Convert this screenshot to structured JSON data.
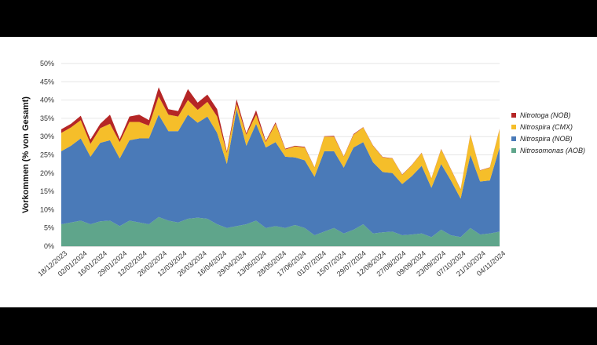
{
  "chart_data": {
    "type": "area",
    "stacked": true,
    "ylabel": "Vorkommen (% von Gesamt)",
    "yticks": [
      "0%",
      "5%",
      "10%",
      "15%",
      "20%",
      "25%",
      "30%",
      "35%",
      "40%",
      "45%",
      "50%"
    ],
    "ylim": [
      0,
      50
    ],
    "x_tick_labels": [
      "18/12/2023",
      "02/01/2024",
      "16/01/2024",
      "29/01/2024",
      "12/02/2024",
      "26/02/2024",
      "12/03/2024",
      "26/03/2024",
      "16/04/2024",
      "29/04/2024",
      "13/05/2024",
      "28/05/2024",
      "17/06/2024",
      "01/07/2024",
      "15/07/2024",
      "29/07/2024",
      "12/08/2024",
      "27/08/2024",
      "09/09/2024",
      "23/09/2024",
      "07/10/2024",
      "21/10/2024",
      "04/11/2024"
    ],
    "legend_position": "right",
    "series": [
      {
        "name": "Nitrosomonas (AOB)",
        "color": "#5fa58b",
        "values": [
          6,
          6.5,
          7,
          6,
          6.8,
          7,
          5.5,
          7,
          6.5,
          6,
          8,
          7,
          6.5,
          7.5,
          7.8,
          7.5,
          6,
          5,
          5.5,
          6,
          7,
          5,
          5.5,
          5,
          5.8,
          5,
          3,
          4,
          5,
          3.5,
          4.5,
          6,
          3.5,
          3.8,
          4,
          3,
          3.2,
          3.5,
          2.5,
          4.5,
          3,
          2.5,
          5,
          3.2,
          3.5,
          4
        ]
      },
      {
        "name": "Nitrospira (NOB)",
        "color": "#4a7ab8",
        "values": [
          20,
          21,
          22.5,
          18.5,
          21.5,
          22,
          18.5,
          22,
          23,
          23.5,
          28,
          24.5,
          25,
          28.5,
          26,
          28,
          25,
          17.5,
          32,
          21.5,
          26.5,
          22,
          23,
          19.5,
          18.5,
          18.5,
          16,
          22,
          21,
          18,
          22.5,
          22.5,
          19.5,
          16.5,
          16,
          14,
          16,
          18.5,
          13.5,
          18,
          15,
          10.5,
          20,
          14.5,
          14.5,
          23
        ]
      },
      {
        "name": "Nitrospira (CMX)",
        "color": "#f5be2a",
        "values": [
          5,
          5,
          5,
          3.5,
          4,
          4.5,
          4.5,
          5,
          4.5,
          3.5,
          5,
          4.5,
          4,
          4,
          3.5,
          4,
          4.5,
          3,
          1.5,
          3,
          2.5,
          1.5,
          5,
          2,
          3,
          3.5,
          2.5,
          4,
          4,
          3,
          3.5,
          4,
          4.5,
          4,
          4,
          2.5,
          3,
          3.5,
          2.5,
          4,
          3,
          2.5,
          5.5,
          3,
          3.5,
          5
        ]
      },
      {
        "name": "Nitrotoga (NOB)",
        "color": "#b52626",
        "values": [
          1,
          1,
          1.2,
          1.2,
          1.2,
          2.5,
          0.8,
          1.5,
          2,
          1.5,
          2.5,
          1.5,
          1.5,
          3,
          2,
          2,
          2,
          0.4,
          1.2,
          0.4,
          1.2,
          0.3,
          0.4,
          0.2,
          0.2,
          0.2,
          0.1,
          0.1,
          0.2,
          0.1,
          0.2,
          0.1,
          0.1,
          0.1,
          0.1,
          0.1,
          0.1,
          0.1,
          0.1,
          0.1,
          0.1,
          0.1,
          0.1,
          0.1,
          0.1,
          0.1
        ]
      }
    ]
  }
}
